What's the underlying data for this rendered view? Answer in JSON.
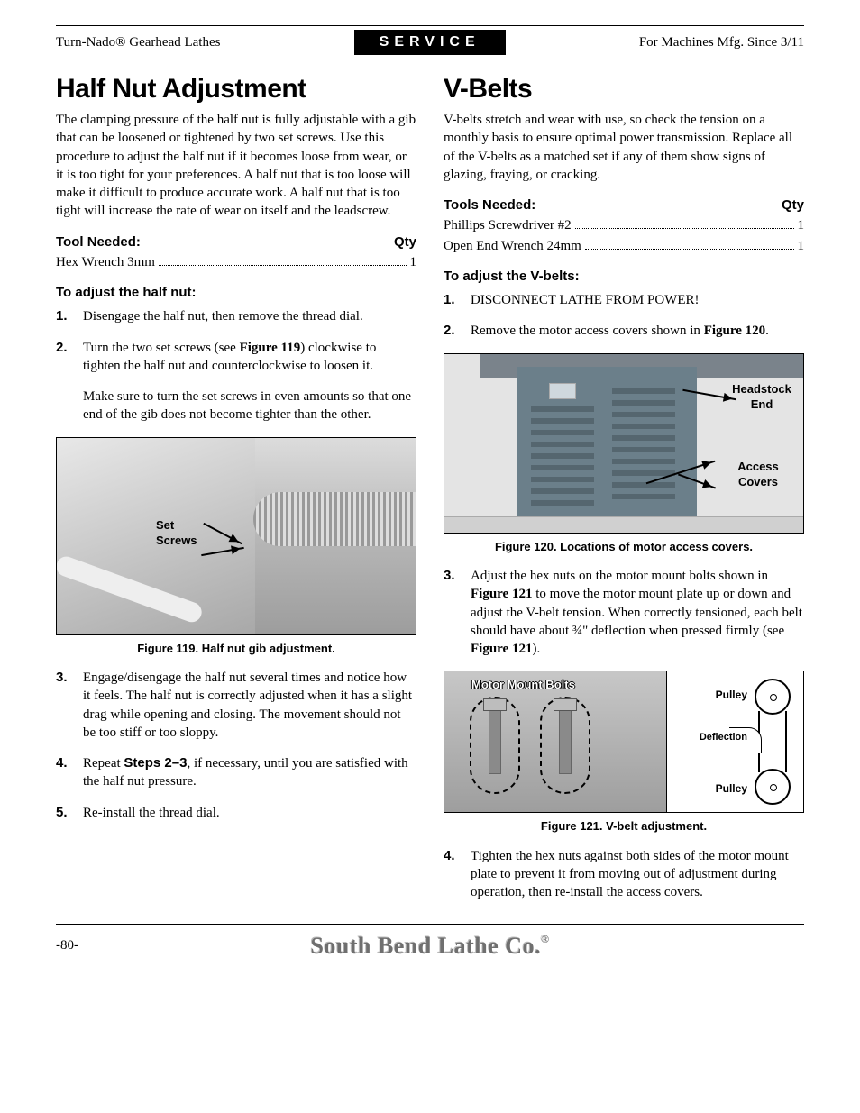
{
  "header": {
    "left": "Turn-Nado® Gearhead Lathes",
    "mid": "SERVICE",
    "right": "For Machines Mfg. Since 3/11"
  },
  "left_col": {
    "h1": "Half Nut Adjustment",
    "intro": "The clamping pressure of the half nut is fully adjustable with a gib that can be loosened or tightened by two set screws. Use this procedure to adjust the half nut if it becomes loose from wear, or it is too tight for your preferences. A half nut that is too loose will make it difficult to produce accurate work. A half nut that is too tight will increase the rate of wear on itself and the leadscrew.",
    "tool_head_l": "Tool Needed:",
    "tool_head_r": "Qty",
    "tools": [
      {
        "name": "Hex Wrench 3mm",
        "qty": "1"
      }
    ],
    "subhead": "To adjust the half nut:",
    "steps": [
      {
        "n": "1.",
        "paras": [
          "Disengage the half nut, then remove the thread dial."
        ]
      },
      {
        "n": "2.",
        "paras": [
          "Turn the two set screws (see <b>Figure 119</b>) clockwise to tighten the half nut and counterclockwise to loosen it.",
          "Make sure to turn the set screws in even amounts so that one end of the gib does not become tighter than the other."
        ]
      }
    ],
    "figure_label": "Set\nScrews",
    "figure_caption": "Figure 119. Half nut gib adjustment.",
    "steps2": [
      {
        "n": "3.",
        "paras": [
          "Engage/disengage the half nut several times and notice how it feels.  The half nut is correctly adjusted when it has a slight drag while opening and closing. The movement should not be too stiff or too sloppy."
        ]
      },
      {
        "n": "4.",
        "paras": [
          "Repeat <b class=\"sans\">Steps 2–3</b>, if necessary, until you are satisfied with the half nut pressure."
        ]
      },
      {
        "n": "5.",
        "paras": [
          "Re-install the thread dial."
        ]
      }
    ]
  },
  "right_col": {
    "h1": "V-Belts",
    "intro": "V-belts stretch and wear with use, so check the tension on a monthly basis to ensure optimal power transmission. Replace all of the V-belts as a matched set if any of them show signs of glazing, fraying, or cracking.",
    "tool_head_l": "Tools Needed:",
    "tool_head_r": "Qty",
    "tools": [
      {
        "name": "Phillips Screwdriver #2",
        "qty": "1"
      },
      {
        "name": "Open End Wrench 24mm",
        "qty": "1"
      }
    ],
    "subhead": "To adjust the V-belts:",
    "steps": [
      {
        "n": "1.",
        "paras": [
          "DISCONNECT LATHE FROM POWER!"
        ]
      },
      {
        "n": "2.",
        "paras": [
          "Remove the motor access covers shown in <b>Figure 120</b>."
        ]
      }
    ],
    "fig120_caption": "Figure 120. Locations of motor access covers.",
    "fig120_label_head": "Headstock\nEnd",
    "fig120_label_acc": "Access\nCovers",
    "steps_mid": [
      {
        "n": "3.",
        "paras": [
          "Adjust the hex nuts on the motor mount bolts shown in <b>Figure 121</b> to move the motor mount plate up or down and adjust the V-belt tension. When correctly tensioned, each belt should have about ¾\" deflection when pressed firmly (see <b>Figure 121</b>)."
        ]
      }
    ],
    "fig121_caption": "Figure 121. V-belt adjustment.",
    "fig121_label_main": "Motor Mount Bolts",
    "fig121_label_p": "Pulley",
    "fig121_label_d": "Deflection",
    "steps_end": [
      {
        "n": "4.",
        "paras": [
          "Tighten the hex nuts against both sides of the motor mount plate to prevent it from moving out of adjustment during operation, then re-install the access covers."
        ]
      }
    ]
  },
  "footer": {
    "page": "-80-",
    "brand": "South Bend Lathe Co."
  }
}
